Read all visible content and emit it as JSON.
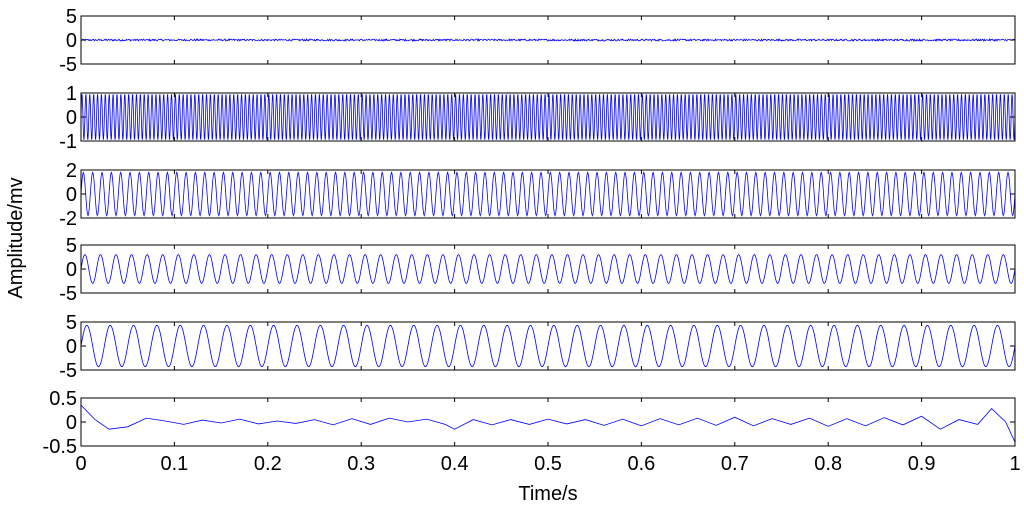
{
  "chart_data": {
    "type": "line",
    "xlabel": "Time/s",
    "ylabel": "Amplitude/mv",
    "x_range": [
      0,
      1
    ],
    "x_ticks": [
      "0",
      "0.1",
      "0.2",
      "0.3",
      "0.4",
      "0.5",
      "0.6",
      "0.7",
      "0.8",
      "0.9",
      "1"
    ],
    "line_color": "#0000ff",
    "grid": false,
    "panels": [
      {
        "ylim": [
          -5,
          5
        ],
        "yticks": [
          "5",
          "0",
          "-5"
        ],
        "signal": "noise",
        "amplitude": 0.2,
        "cycles": 0
      },
      {
        "ylim": [
          -1,
          1
        ],
        "yticks": [
          "1",
          "0",
          "-1"
        ],
        "signal": "sine",
        "amplitude": 0.95,
        "cycles": 240
      },
      {
        "ylim": [
          -2,
          2
        ],
        "yticks": [
          "2",
          "0",
          "-2"
        ],
        "signal": "sine",
        "amplitude": 1.8,
        "cycles": 100
      },
      {
        "ylim": [
          -5,
          5
        ],
        "yticks": [
          "5",
          "0",
          "-5"
        ],
        "signal": "sine",
        "amplitude": 3.0,
        "cycles": 60
      },
      {
        "ylim": [
          -5,
          5
        ],
        "yticks": [
          "5",
          "0",
          "-5"
        ],
        "signal": "sine",
        "amplitude": 4.3,
        "cycles": 40
      },
      {
        "ylim": [
          -0.5,
          0.5
        ],
        "yticks": [
          "0.5",
          "0",
          "-0.5"
        ],
        "signal": "residual",
        "x": [
          0,
          0.015,
          0.03,
          0.05,
          0.07,
          0.09,
          0.11,
          0.13,
          0.15,
          0.17,
          0.19,
          0.21,
          0.23,
          0.25,
          0.27,
          0.29,
          0.31,
          0.33,
          0.35,
          0.37,
          0.39,
          0.4,
          0.42,
          0.44,
          0.46,
          0.48,
          0.5,
          0.52,
          0.54,
          0.56,
          0.58,
          0.6,
          0.62,
          0.64,
          0.66,
          0.68,
          0.7,
          0.72,
          0.74,
          0.76,
          0.78,
          0.8,
          0.82,
          0.84,
          0.86,
          0.88,
          0.9,
          0.92,
          0.94,
          0.96,
          0.975,
          0.99,
          1.0
        ],
        "y": [
          0.35,
          0.05,
          -0.15,
          -0.1,
          0.08,
          0.02,
          -0.05,
          0.04,
          -0.02,
          0.06,
          -0.04,
          0.02,
          -0.03,
          0.05,
          -0.06,
          0.07,
          -0.05,
          0.08,
          0.0,
          0.06,
          -0.05,
          -0.15,
          0.05,
          -0.06,
          0.05,
          -0.05,
          0.06,
          -0.04,
          0.05,
          -0.07,
          0.06,
          -0.08,
          0.07,
          -0.06,
          0.08,
          -0.07,
          0.1,
          -0.08,
          0.07,
          -0.05,
          0.08,
          -0.09,
          0.07,
          -0.08,
          0.09,
          -0.06,
          0.12,
          -0.15,
          0.05,
          -0.05,
          0.28,
          0.0,
          -0.42
        ]
      }
    ]
  }
}
